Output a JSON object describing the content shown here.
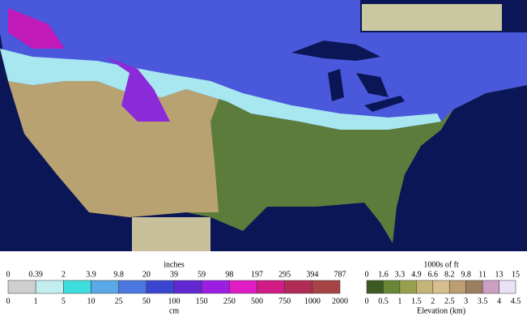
{
  "snow_legend": {
    "top_unit": "inches",
    "bottom_unit": "cm",
    "inches": [
      0,
      0.39,
      2,
      3.9,
      9.8,
      20,
      39,
      59,
      98,
      197,
      295,
      394,
      787
    ],
    "cm": [
      0,
      1,
      5,
      10,
      25,
      50,
      100,
      150,
      250,
      500,
      750,
      1000,
      2000
    ],
    "colors": [
      "#cfcfcf",
      "#c4eeee",
      "#3fdede",
      "#5aa8e6",
      "#4a78e0",
      "#3a46d2",
      "#6228d2",
      "#9c1ee2",
      "#e01cc4",
      "#d01c84",
      "#b02c56",
      "#a44444"
    ]
  },
  "elevation_legend": {
    "top_unit": "1000s of ft",
    "bottom_unit": "Elevation (km)",
    "feet": [
      0,
      1.6,
      3.3,
      4.9,
      6.6,
      8.2,
      9.8,
      11,
      13,
      15
    ],
    "km": [
      0,
      0.5,
      1,
      1.5,
      2,
      2.5,
      3,
      3.5,
      4,
      4.5
    ],
    "colors": [
      "#3c5a22",
      "#688838",
      "#98a04e",
      "#c4b478",
      "#d6be8e",
      "#bc9e70",
      "#9c7e62",
      "#cc9ec2",
      "#e8e2f2"
    ]
  }
}
